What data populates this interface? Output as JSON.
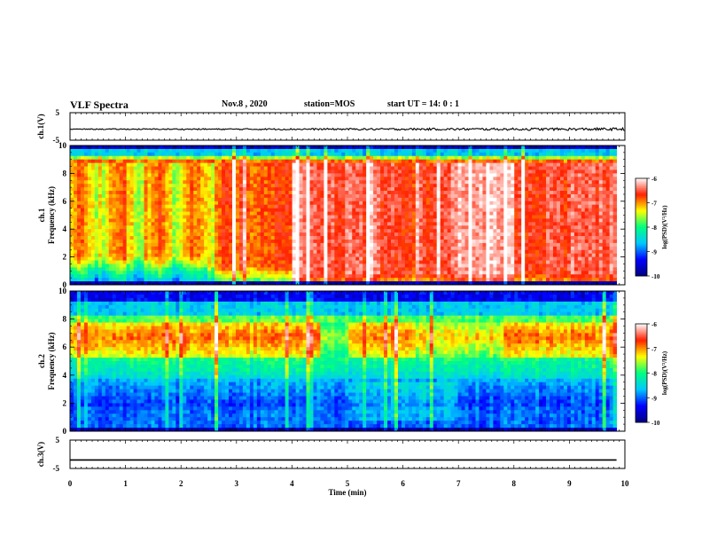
{
  "header": {
    "title": "VLF Spectra",
    "date": "Nov.8 , 2020",
    "station": "station=MOS",
    "start": "start UT = 14: 0 : 1"
  },
  "chart_data": [
    {
      "type": "line",
      "panel": "ch1-waveform",
      "ylabel": "ch.1(V)",
      "ylim": [
        -5,
        5
      ],
      "yticks": [
        "5",
        "-5"
      ],
      "xlim": [
        0,
        10
      ],
      "series": [
        {
          "values_description_level": -1.0
        }
      ]
    },
    {
      "type": "heatmap",
      "panel": "ch1-spectrogram",
      "ylabel": "ch.1\nFrequency (kHz)",
      "ylabel_line1": "ch.1",
      "ylabel_line2": "Frequency (kHz)",
      "ylim": [
        0,
        10
      ],
      "yticks": [
        "0",
        "2",
        "4",
        "6",
        "8",
        "10"
      ],
      "xlim": [
        0,
        9.85
      ],
      "colorbar": {
        "label": "log(PSD)(V²/Hz)",
        "range": [
          -10,
          -6
        ],
        "ticks": [
          "-6",
          "-7",
          "-8",
          "-9",
          "-10"
        ],
        "colormap": [
          "#000080",
          "#0000ff",
          "#00c8ff",
          "#00ff80",
          "#ffff00",
          "#ff2000",
          "#ffffff"
        ]
      }
    },
    {
      "type": "heatmap",
      "panel": "ch2-spectrogram",
      "ylabel": "ch.2\nFrequency (kHz)",
      "ylabel_line1": "ch.2",
      "ylabel_line2": "Frequency (kHz)",
      "ylim": [
        0,
        10
      ],
      "yticks": [
        "0",
        "2",
        "4",
        "6",
        "8",
        "10"
      ],
      "xlim": [
        0,
        9.85
      ],
      "colorbar": {
        "label": "log(PSD)(V²/Hz)",
        "range": [
          -10,
          -6
        ],
        "ticks": [
          "-6",
          "-7",
          "-8",
          "-9",
          "-10"
        ],
        "colormap": [
          "#000080",
          "#0000ff",
          "#00c8ff",
          "#00ff80",
          "#ffff00",
          "#ff2000",
          "#ffffff"
        ]
      }
    },
    {
      "type": "line",
      "panel": "ch3-waveform",
      "ylabel": "ch.3(V)",
      "ylim": [
        -5,
        5
      ],
      "yticks": [
        "5",
        "-5"
      ],
      "xlim": [
        0,
        9.85
      ],
      "series": [
        {
          "values_description_level": -2.0
        }
      ]
    }
  ],
  "xaxis": {
    "label": "Time (min)",
    "ticks": [
      "0",
      "1",
      "2",
      "3",
      "4",
      "5",
      "6",
      "7",
      "8",
      "9",
      "10"
    ]
  }
}
